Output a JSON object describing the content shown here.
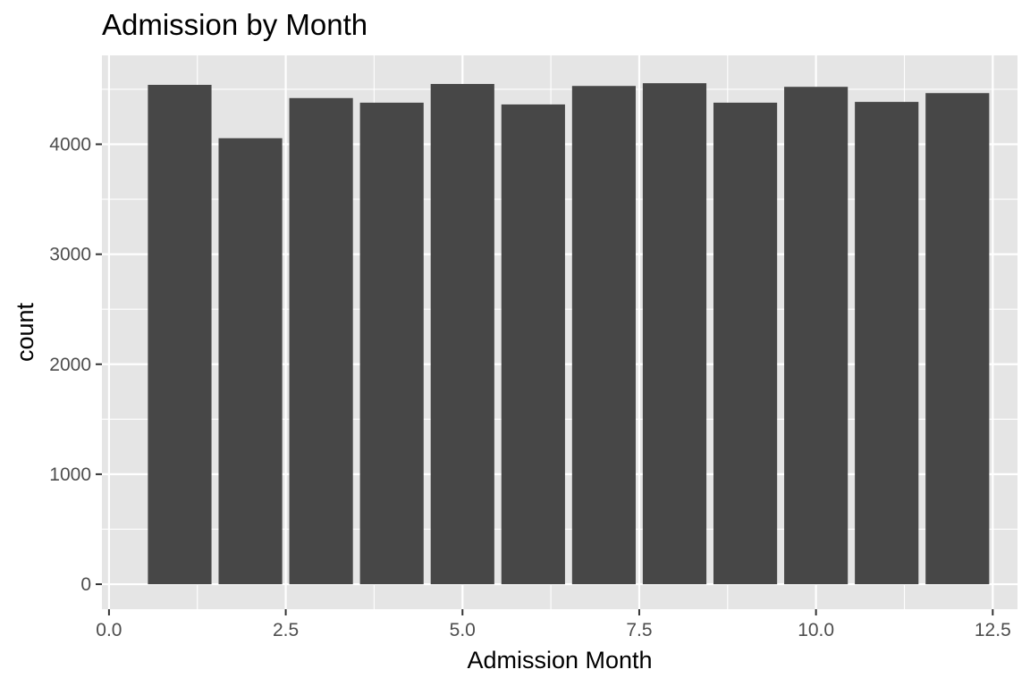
{
  "chart_data": {
    "type": "bar",
    "title": "Admission by Month",
    "xlabel": "Admission Month",
    "ylabel": "count",
    "x": [
      1,
      2,
      3,
      4,
      5,
      6,
      7,
      8,
      9,
      10,
      11,
      12
    ],
    "values": [
      4540,
      4055,
      4420,
      4378,
      4548,
      4362,
      4530,
      4555,
      4378,
      4522,
      4385,
      4465
    ],
    "bar_width": 0.9,
    "xlim": [
      -0.1,
      12.85
    ],
    "ylim": [
      -227,
      4808
    ],
    "x_ticks": [
      0.0,
      2.5,
      5.0,
      7.5,
      10.0,
      12.5
    ],
    "x_tick_labels": [
      "0.0",
      "2.5",
      "5.0",
      "7.5",
      "10.0",
      "12.5"
    ],
    "y_ticks": [
      0,
      1000,
      2000,
      3000,
      4000
    ],
    "y_tick_labels": [
      "0",
      "1000",
      "2000",
      "3000",
      "4000"
    ],
    "grid": true,
    "colors": {
      "panel_background": "#e5e5e5",
      "grid_line": "#ffffff",
      "bar_fill": "#474747",
      "tick_label": "#4d4d4d",
      "tick_mark": "#333333"
    }
  }
}
